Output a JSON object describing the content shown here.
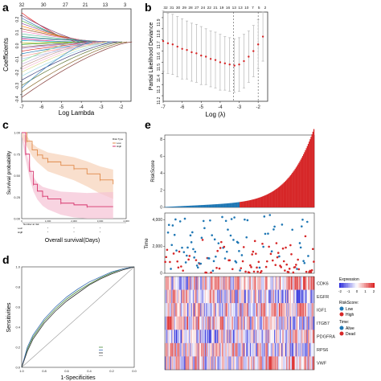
{
  "panels": {
    "a": {
      "letter": "a",
      "xlabel": "Log Lambda",
      "ylabel": "Coefficients",
      "top_ticks": [
        "32",
        "30",
        "27",
        "21",
        "13",
        "3"
      ],
      "x_ticks": [
        "-7",
        "-6",
        "-5",
        "-4",
        "-3",
        "-2"
      ],
      "y_ticks": [
        "0.2",
        "0.1",
        "0.0",
        "-0.1",
        "-0.2",
        "-0.3",
        "-0.4"
      ]
    },
    "b": {
      "letter": "b",
      "xlabel": "Log (λ)",
      "ylabel": "Partial Likelihood Deviance",
      "top_ticks": [
        "32",
        "31",
        "30",
        "29",
        "28",
        "27",
        "24",
        "22",
        "21",
        "19",
        "16",
        "13",
        "13",
        "10",
        "7",
        "5",
        "2"
      ],
      "x_ticks": [
        "-7",
        "-6",
        "-5",
        "-4",
        "-3",
        "-2"
      ],
      "y_ticks": [
        "11.2",
        "11.3",
        "11.4",
        "11.5",
        "11.6",
        "11.7",
        "11.8",
        "11.9"
      ]
    },
    "c": {
      "letter": "c",
      "xlabel": "Overall survival(Days)",
      "ylabel": "Survival probability",
      "legend_title": "Risk Type",
      "legend_items": [
        "Low",
        "High"
      ],
      "y_ticks": [
        "1.00",
        "0.75",
        "0.50",
        "0.25",
        "0.00"
      ],
      "x_ticks": [
        "0",
        "1,000",
        "2,000",
        "3,000",
        "4,000"
      ],
      "risk_label": "Number at risk",
      "risk_rows": [
        "Low",
        "High"
      ]
    },
    "d": {
      "letter": "d",
      "xlabel": "1-Specificities",
      "ylabel": "Sensitivities",
      "x_ticks": [
        "1.0",
        "0.8",
        "0.6",
        "0.4",
        "0.2",
        "0.0"
      ],
      "y_ticks": [
        "1.0",
        "0.8",
        "0.6",
        "0.4",
        "0.2",
        "0.0"
      ]
    },
    "e": {
      "letter": "e",
      "riskscore_label": "RiskScore",
      "time_label": "Time",
      "rs_ticks": [
        "8",
        "6",
        "4",
        "2",
        "0"
      ],
      "time_ticks": [
        "4,000",
        "2,000",
        "0"
      ],
      "genes": [
        "CDK6",
        "EGFR",
        "IGF1",
        "ITGB7",
        "PDGFRA",
        "RPS6",
        "VWF"
      ],
      "legend": {
        "expression": "Expression",
        "expr_ticks": [
          "-2",
          "-1",
          "0",
          "1",
          "2"
        ],
        "riskscore": "RiskScore:",
        "low": "Low",
        "high": "High",
        "time": "Time:",
        "alive": "Alive",
        "dead": "Dead"
      }
    }
  },
  "colors": {
    "low": "#1f77b4",
    "high": "#d62728",
    "path": "#d62728",
    "km_low": "#e08a4a",
    "km_high": "#d6336c"
  },
  "chart_data": [
    {
      "type": "line",
      "panel": "a",
      "xlabel": "Log Lambda",
      "ylabel": "Coefficients",
      "xlim": [
        -7,
        -1.5
      ],
      "ylim": [
        -0.45,
        0.25
      ],
      "series_count": 32,
      "series_endpoints_at_minus7": [
        0.22,
        0.18,
        0.16,
        0.14,
        0.12,
        0.1,
        0.08,
        0.06,
        0.04,
        0.03,
        0.02,
        0.01,
        -0.01,
        -0.02,
        -0.04,
        -0.05,
        -0.07,
        -0.09,
        -0.11,
        -0.13,
        -0.15,
        -0.17,
        -0.19,
        -0.21,
        -0.23,
        -0.26,
        -0.29,
        -0.33,
        -0.38,
        -0.42,
        0.2,
        -0.35
      ]
    },
    {
      "type": "scatter",
      "panel": "b",
      "xlabel": "Log (λ)",
      "ylabel": "Partial Likelihood Deviance",
      "xlim": [
        -7,
        -1.5
      ],
      "ylim": [
        11.15,
        11.95
      ],
      "x": [
        -7,
        -6.75,
        -6.5,
        -6.25,
        -6,
        -5.75,
        -5.5,
        -5.25,
        -5,
        -4.75,
        -4.5,
        -4.25,
        -4,
        -3.75,
        -3.5,
        -3.25,
        -3,
        -2.75,
        -2.5,
        -2.25,
        -2,
        -1.75
      ],
      "y": [
        11.69,
        11.67,
        11.66,
        11.64,
        11.62,
        11.61,
        11.59,
        11.58,
        11.56,
        11.55,
        11.53,
        11.52,
        11.5,
        11.49,
        11.48,
        11.47,
        11.48,
        11.51,
        11.55,
        11.6,
        11.66,
        11.73
      ],
      "err": [
        0.27,
        0.27,
        0.27,
        0.27,
        0.27,
        0.26,
        0.26,
        0.26,
        0.26,
        0.25,
        0.25,
        0.25,
        0.25,
        0.24,
        0.24,
        0.24,
        0.24,
        0.24,
        0.23,
        0.23,
        0.22,
        0.22
      ],
      "vlines": [
        -3.3,
        -2.0
      ]
    },
    {
      "type": "line",
      "panel": "c",
      "xlabel": "Overall survival(Days)",
      "ylabel": "Survival probability",
      "xlim": [
        0,
        4000
      ],
      "ylim": [
        0,
        1
      ],
      "series": [
        {
          "name": "Low",
          "x": [
            0,
            200,
            400,
            600,
            800,
            1000,
            1500,
            2000,
            2500,
            3000,
            3500
          ],
          "y": [
            1,
            0.9,
            0.8,
            0.74,
            0.7,
            0.66,
            0.62,
            0.58,
            0.52,
            0.45,
            0.4
          ]
        },
        {
          "name": "High",
          "x": [
            0,
            150,
            300,
            450,
            600,
            800,
            1000,
            1500,
            2000,
            2500,
            3500
          ],
          "y": [
            1,
            0.75,
            0.55,
            0.4,
            0.32,
            0.26,
            0.23,
            0.18,
            0.16,
            0.14,
            0.14
          ]
        }
      ]
    },
    {
      "type": "line",
      "panel": "d",
      "xlabel": "1-Specificities",
      "ylabel": "Sensitivities",
      "xlim": [
        1,
        0
      ],
      "ylim": [
        0,
        1
      ],
      "series": [
        {
          "x": [
            1,
            0.95,
            0.9,
            0.8,
            0.7,
            0.6,
            0.5,
            0.4,
            0.3,
            0.2,
            0.1,
            0
          ],
          "y": [
            0,
            0.18,
            0.3,
            0.46,
            0.58,
            0.68,
            0.76,
            0.83,
            0.89,
            0.94,
            0.98,
            1
          ]
        },
        {
          "x": [
            1,
            0.95,
            0.9,
            0.8,
            0.7,
            0.6,
            0.5,
            0.4,
            0.3,
            0.2,
            0.1,
            0
          ],
          "y": [
            0,
            0.2,
            0.32,
            0.48,
            0.6,
            0.7,
            0.78,
            0.85,
            0.9,
            0.95,
            0.98,
            1
          ]
        },
        {
          "x": [
            1,
            0.95,
            0.9,
            0.8,
            0.7,
            0.6,
            0.5,
            0.4,
            0.3,
            0.2,
            0.1,
            0
          ],
          "y": [
            0,
            0.16,
            0.28,
            0.44,
            0.56,
            0.66,
            0.74,
            0.82,
            0.88,
            0.93,
            0.97,
            1
          ]
        }
      ]
    },
    {
      "type": "bar",
      "panel": "e-riskscore",
      "ylabel": "RiskScore",
      "ylim": [
        0,
        8.5
      ],
      "n_samples": 160,
      "n_low": 80,
      "score_min": 0.05,
      "score_max": 8.3
    },
    {
      "type": "scatter",
      "panel": "e-time",
      "ylabel": "Time",
      "ylim": [
        0,
        4500
      ],
      "n_samples": 160
    },
    {
      "type": "heatmap",
      "panel": "e-heatmap",
      "rows": [
        "CDK6",
        "EGFR",
        "IGF1",
        "ITGB7",
        "PDGFRA",
        "RPS6",
        "VWF"
      ],
      "color_range": [
        -2,
        2
      ]
    }
  ]
}
